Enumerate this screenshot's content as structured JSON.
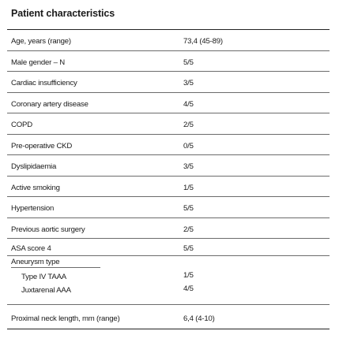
{
  "title": "Patient characteristics",
  "rows": [
    {
      "label": "Age, years (range)",
      "value": "73,4 (45-89)"
    },
    {
      "label": "Male gender – N",
      "value": "5/5"
    },
    {
      "label": "Cardiac insufficiency",
      "value": "3/5"
    },
    {
      "label": "Coronary artery disease",
      "value": "4/5"
    },
    {
      "label": "COPD",
      "value": "2/5"
    },
    {
      "label": "Pre-operative CKD",
      "value": "0/5"
    },
    {
      "label": "Dyslipidaemia",
      "value": "3/5"
    },
    {
      "label": "Active smoking",
      "value": "1/5"
    },
    {
      "label": "Hypertension",
      "value": "5/5"
    },
    {
      "label": "Previous aortic surgery",
      "value": "2/5"
    },
    {
      "label": "ASA score 4",
      "value": "5/5"
    }
  ],
  "aneurysm": {
    "label": "Aneurysm type",
    "items": [
      {
        "label": "Type IV TAAA",
        "value": "1/5"
      },
      {
        "label": "Juxtarenal AAA",
        "value": "4/5"
      }
    ]
  },
  "neck": {
    "label": "Proximal neck length, mm (range)",
    "value": "6,4 (4-10)"
  }
}
